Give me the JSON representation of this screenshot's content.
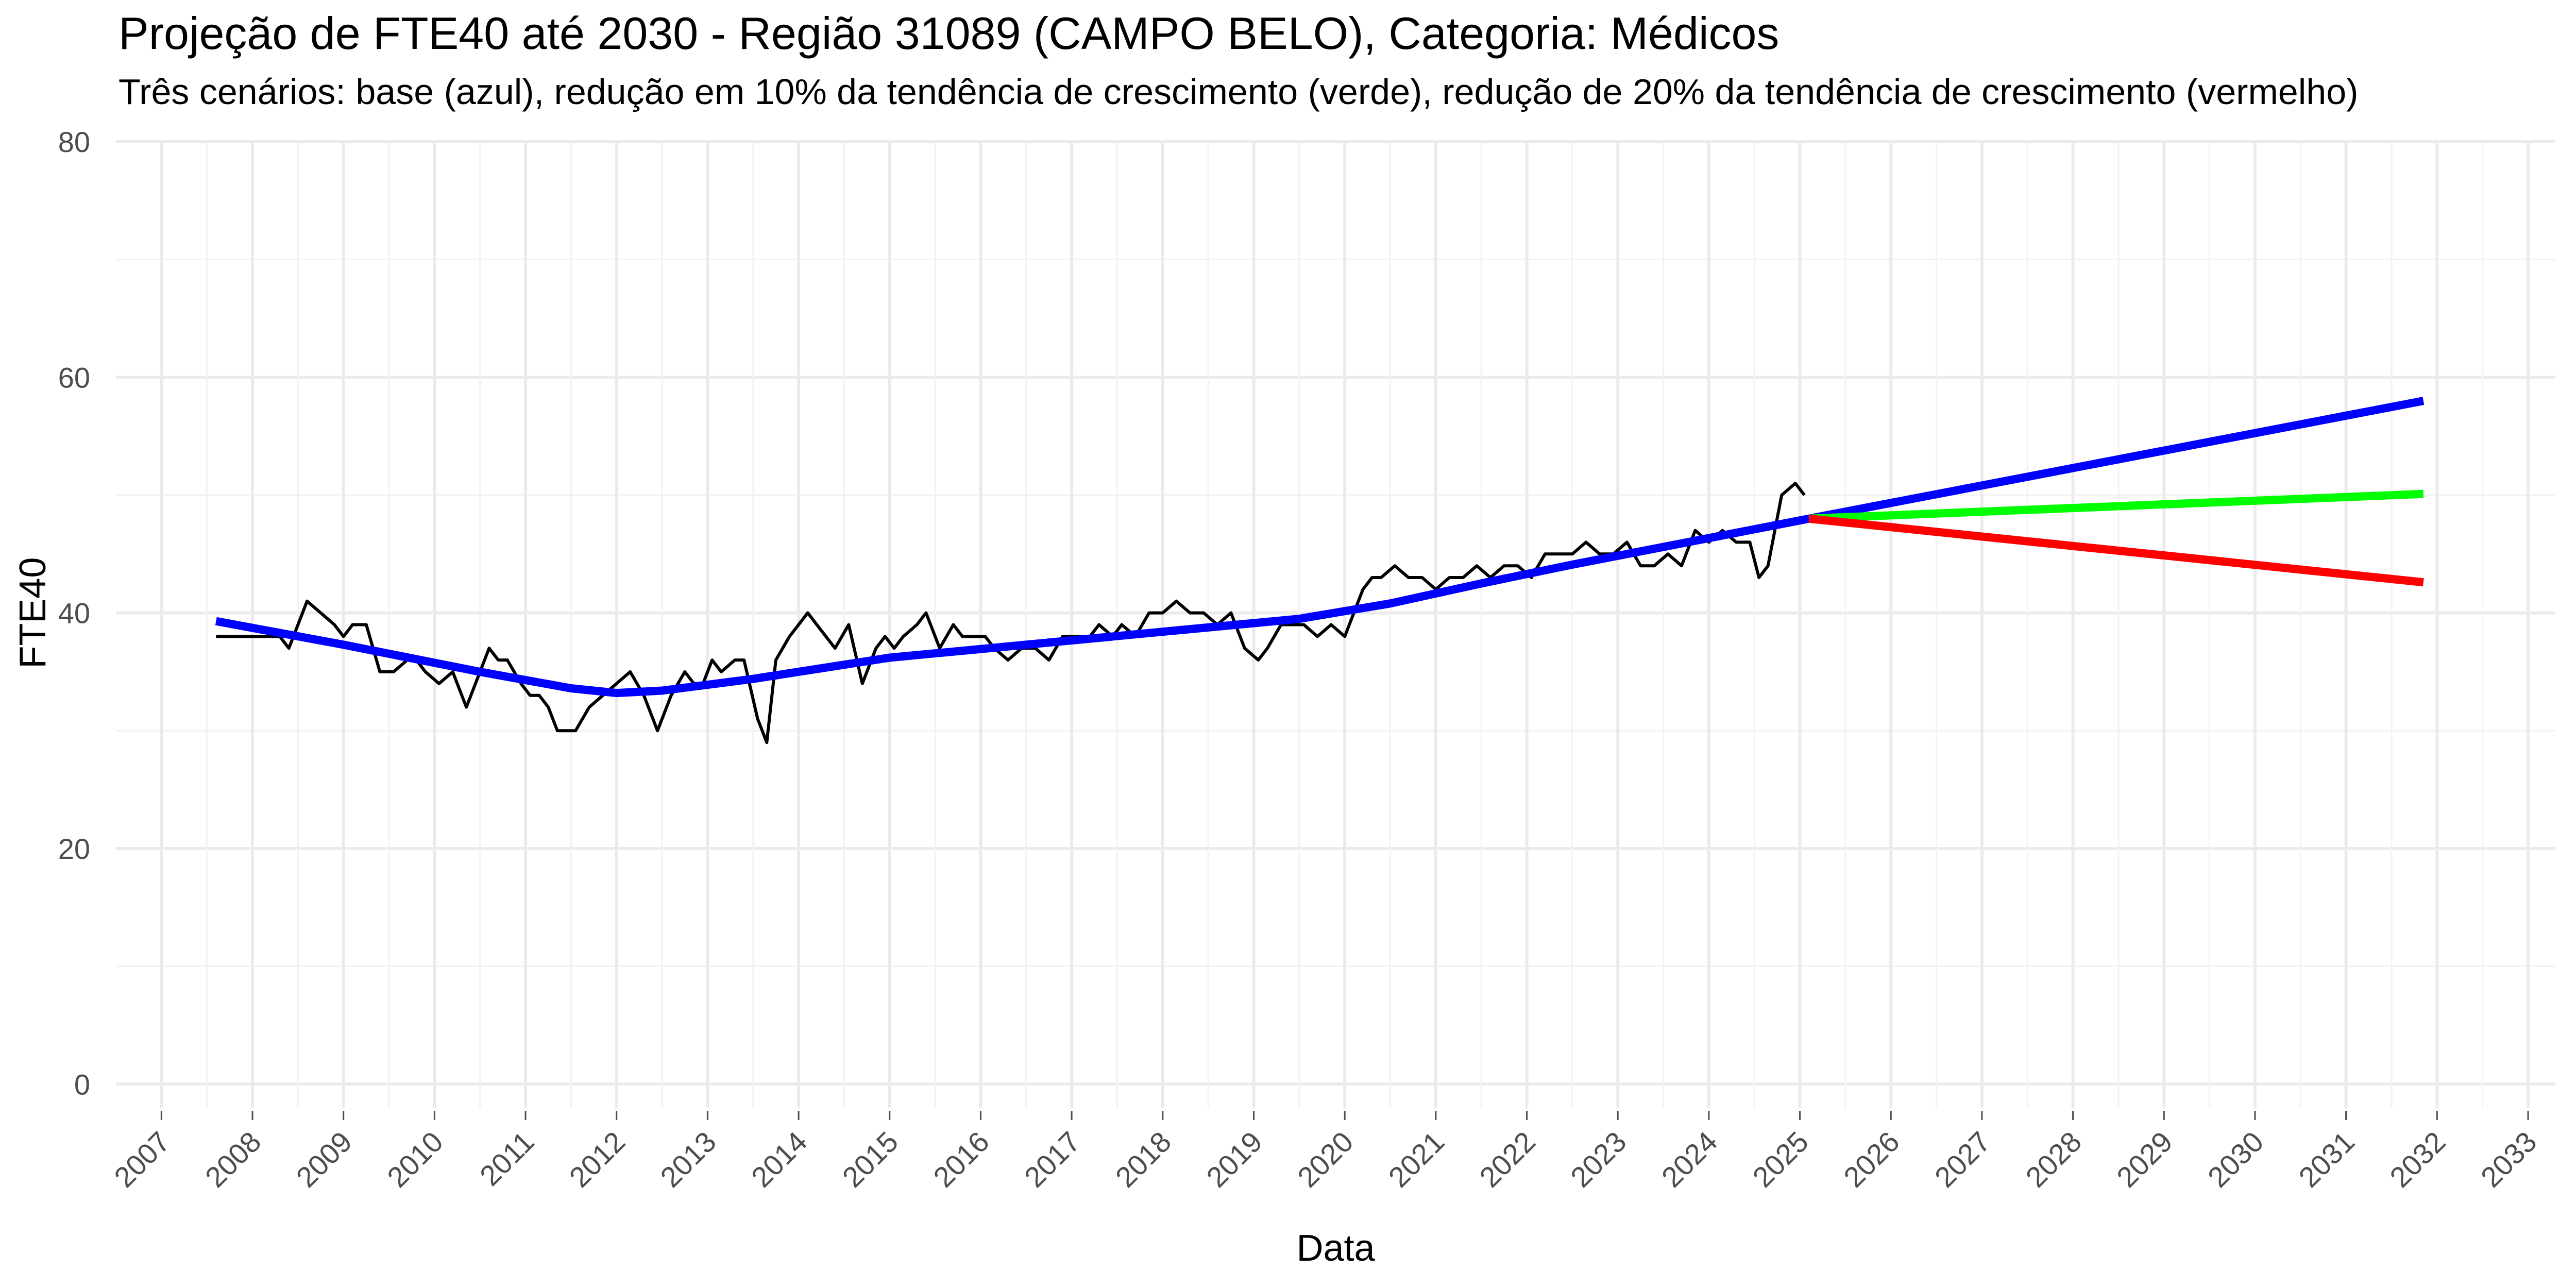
{
  "chart_data": {
    "type": "line",
    "title": "Projeção de FTE40 até 2030 - Região 31089 (CAMPO BELO), Categoria: Médicos",
    "subtitle": "Três cenários: base (azul), redução em 10% da tendência de crescimento (verde), redução de 20% da tendência de crescimento (vermelho)",
    "xlabel": "Data",
    "ylabel": "FTE40",
    "xlim": [
      2006.5,
      2033.3
    ],
    "ylim": [
      -2,
      80
    ],
    "y_ticks": [
      0,
      20,
      40,
      60,
      80
    ],
    "x_ticks": [
      "2007",
      "2008",
      "2009",
      "2010",
      "2011",
      "2012",
      "2013",
      "2014",
      "2015",
      "2016",
      "2017",
      "2018",
      "2019",
      "2020",
      "2021",
      "2022",
      "2023",
      "2024",
      "2025",
      "2026",
      "2027",
      "2028",
      "2029",
      "2030",
      "2031",
      "2032",
      "2033"
    ],
    "grid": true,
    "legend": "none",
    "series": [
      {
        "color": "#000000",
        "x": [
          2007.6,
          2008.3,
          2008.4,
          2008.5,
          2008.6,
          2008.75,
          2008.9,
          2009.0,
          2009.1,
          2009.25,
          2009.4,
          2009.55,
          2009.7,
          2009.8,
          2009.9,
          2010.05,
          2010.2,
          2010.35,
          2010.5,
          2010.6,
          2010.7,
          2010.8,
          2010.95,
          2011.05,
          2011.15,
          2011.25,
          2011.35,
          2011.45,
          2011.55,
          2011.7,
          2011.85,
          2012.0,
          2012.15,
          2012.3,
          2012.45,
          2012.6,
          2012.75,
          2012.85,
          2012.95,
          2013.05,
          2013.15,
          2013.3,
          2013.4,
          2013.55,
          2013.65,
          2013.75,
          2013.9,
          2014.0,
          2014.1,
          2014.2,
          2014.3,
          2014.4,
          2014.55,
          2014.7,
          2014.85,
          2014.95,
          2015.05,
          2015.15,
          2015.3,
          2015.4,
          2015.55,
          2015.7,
          2015.8,
          2015.95,
          2016.05,
          2016.15,
          2016.3,
          2016.45,
          2016.6,
          2016.75,
          2016.9,
          2017.05,
          2017.2,
          2017.3,
          2017.45,
          2017.55,
          2017.7,
          2017.85,
          2018.0,
          2018.15,
          2018.3,
          2018.45,
          2018.6,
          2018.75,
          2018.9,
          2019.05,
          2019.15,
          2019.3,
          2019.4,
          2019.55,
          2019.7,
          2019.85,
          2020.0,
          2020.1,
          2020.2,
          2020.3,
          2020.4,
          2020.55,
          2020.7,
          2020.85,
          2021.0,
          2021.15,
          2021.3,
          2021.45,
          2021.6,
          2021.75,
          2021.9,
          2022.05,
          2022.2,
          2022.35,
          2022.5,
          2022.65,
          2022.8,
          2022.95,
          2023.1,
          2023.25,
          2023.4,
          2023.55,
          2023.7,
          2023.85,
          2024.0,
          2024.15,
          2024.3,
          2024.45,
          2024.55,
          2024.65,
          2024.8,
          2024.95,
          2025.05
        ],
        "y": [
          38,
          38,
          37,
          39,
          41,
          40,
          39,
          38,
          39,
          39,
          35,
          35,
          36,
          36,
          35,
          34,
          35,
          32,
          35,
          37,
          36,
          36,
          34,
          33,
          33,
          32,
          30,
          30,
          30,
          32,
          33,
          34,
          35,
          33,
          30,
          33,
          35,
          34,
          34,
          36,
          35,
          36,
          36,
          31,
          29,
          36,
          38,
          39,
          40,
          39,
          38,
          37,
          39,
          34,
          37,
          38,
          37,
          38,
          39,
          40,
          37,
          39,
          38,
          38,
          38,
          37,
          36,
          37,
          37,
          36,
          38,
          38,
          38,
          39,
          38,
          39,
          38,
          40,
          40,
          41,
          40,
          40,
          39,
          40,
          37,
          36,
          37,
          39,
          39,
          39,
          38,
          39,
          38,
          40,
          42,
          43,
          43,
          44,
          43,
          43,
          42,
          43,
          43,
          44,
          43,
          44,
          44,
          43,
          45,
          45,
          45,
          46,
          45,
          45,
          46,
          44,
          44,
          45,
          44,
          47,
          46,
          47,
          46,
          46,
          43,
          44,
          50,
          51,
          50
        ]
      },
      {
        "color": "#0000ff",
        "x": [
          2007.6,
          2009.0,
          2010.5,
          2011.5,
          2012.0,
          2012.5,
          2013.5,
          2015.0,
          2016.5,
          2018.0,
          2019.5,
          2020.5,
          2021.5,
          2022.5,
          2023.5,
          2024.5,
          2025.1
        ],
        "y": [
          39.3,
          37.3,
          35.0,
          33.6,
          33.2,
          33.4,
          34.4,
          36.2,
          37.3,
          38.4,
          39.5,
          40.8,
          42.5,
          44.1,
          45.6,
          47.1,
          48.0
        ]
      },
      {
        "color": "#0000ff",
        "x": [
          2025.1,
          2031.85
        ],
        "y": [
          48.0,
          58.0
        ]
      },
      {
        "color": "#00ff00",
        "x": [
          2025.1,
          2031.85
        ],
        "y": [
          48.0,
          50.1
        ]
      },
      {
        "color": "#ff0000",
        "x": [
          2025.1,
          2031.85
        ],
        "y": [
          48.0,
          42.6
        ]
      }
    ]
  }
}
